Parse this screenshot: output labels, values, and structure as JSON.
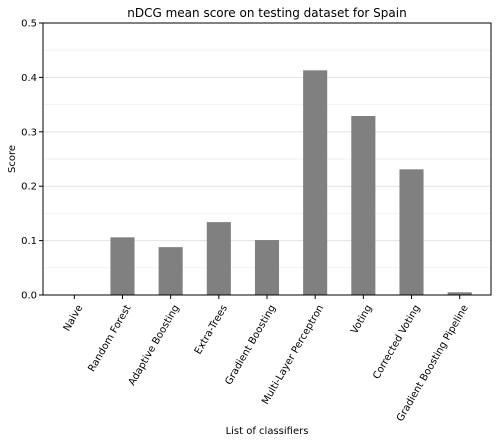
{
  "chart_data": {
    "type": "bar",
    "title": "nDCG mean score on testing dataset for Spain",
    "xlabel": "List of classifiers",
    "ylabel": "Score",
    "categories": [
      "Naive",
      "Random Forest",
      "Adaptive Boosting",
      "Extra-Trees",
      "Gradient Boosting",
      "Multi-Layer Perceptron",
      "Voting",
      "Corrected Voting",
      "Gradient Boosting Pipeline"
    ],
    "values": [
      0.0,
      0.106,
      0.088,
      0.134,
      0.101,
      0.413,
      0.329,
      0.231,
      0.005
    ],
    "ylim": [
      0,
      0.5
    ],
    "yticks": [
      0.0,
      0.1,
      0.2,
      0.3,
      0.4,
      0.5
    ],
    "ytick_labels": [
      "0.0",
      "0.1",
      "0.2",
      "0.3",
      "0.4",
      "0.5"
    ],
    "bar_color": "#808080",
    "grid": "horizontal",
    "grid_color": "#e6e6e6",
    "legend": "none"
  }
}
